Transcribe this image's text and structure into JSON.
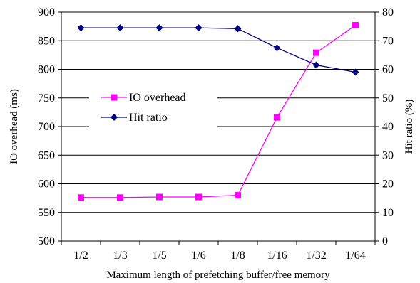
{
  "chart_data": {
    "type": "line",
    "categories": [
      "1/2",
      "1/3",
      "1/5",
      "1/6",
      "1/8",
      "1/16",
      "1/32",
      "1/64"
    ],
    "xlabel": "Maximum length of prefetching buffer/free memory",
    "ylabel": "IO overhead (ms)",
    "y2label": "Hit ratio (%)",
    "ylim": [
      500,
      900
    ],
    "y2lim": [
      0,
      80
    ],
    "yticks": [
      500,
      550,
      600,
      650,
      700,
      750,
      800,
      850,
      900
    ],
    "y2ticks": [
      0,
      10,
      20,
      30,
      40,
      50,
      60,
      70,
      80
    ],
    "grid": true,
    "legend": "center-left",
    "series": [
      {
        "name": "IO overhead",
        "axis": "left",
        "color": "#ff00ff",
        "marker": "square",
        "values": [
          576,
          576,
          577,
          577,
          580,
          716,
          829,
          877
        ]
      },
      {
        "name": "Hit ratio",
        "axis": "right",
        "color": "#000080",
        "marker": "diamond",
        "values": [
          74.5,
          74.5,
          74.5,
          74.5,
          74.2,
          67.5,
          61.5,
          59
        ]
      }
    ]
  }
}
